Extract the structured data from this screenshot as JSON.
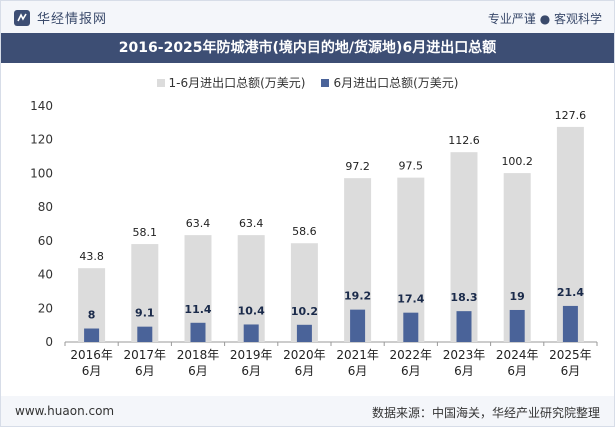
{
  "header": {
    "brand": "华经情报网",
    "tagline": "专业严谨 ● 客观科学"
  },
  "footer": {
    "url": "www.huaon.com",
    "source": "数据来源：中国海关，华经产业研究院整理"
  },
  "colors": {
    "series_ytd": "#dcdcdc",
    "series_june": "#4a6399",
    "title_bar": "#3d4e74"
  },
  "chart_data": {
    "type": "bar",
    "title": "2016-2025年防城港市(境内目的地/货源地)6月进出口总额",
    "categories": [
      [
        "2016年",
        "6月"
      ],
      [
        "2017年",
        "6月"
      ],
      [
        "2018年",
        "6月"
      ],
      [
        "2019年",
        "6月"
      ],
      [
        "2020年",
        "6月"
      ],
      [
        "2021年",
        "6月"
      ],
      [
        "2022年",
        "6月"
      ],
      [
        "2023年",
        "6月"
      ],
      [
        "2024年",
        "6月"
      ],
      [
        "2025年",
        "6月"
      ]
    ],
    "series": [
      {
        "name": "1-6月进出口总额(万美元)",
        "values": [
          43.8,
          58.1,
          63.4,
          63.4,
          58.6,
          97.2,
          97.5,
          112.6,
          100.2,
          127.6
        ]
      },
      {
        "name": "6月进出口总额(万美元)",
        "values": [
          8,
          9.1,
          11.4,
          10.4,
          10.2,
          19.2,
          17.4,
          18.3,
          19,
          21.4
        ]
      }
    ],
    "ylim": [
      0,
      140
    ],
    "yticks": [
      0,
      20,
      40,
      60,
      80,
      100,
      120,
      140
    ],
    "grid": false,
    "legend_position": "top-center"
  }
}
